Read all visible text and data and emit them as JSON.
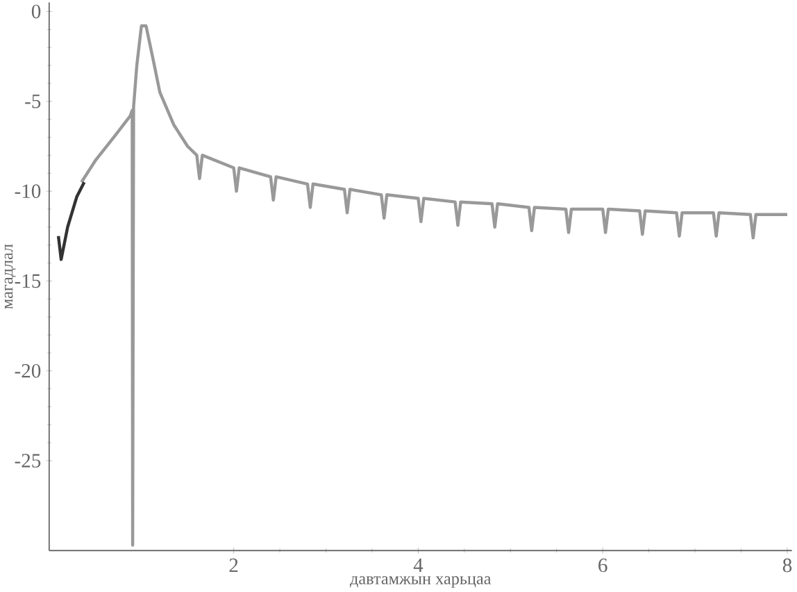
{
  "chart_data": {
    "type": "line",
    "xlabel": "давтамжын харьцаа",
    "ylabel": "магадлал",
    "xlim": [
      0,
      8.05
    ],
    "ylim": [
      -30,
      0.5
    ],
    "xticks": [
      2,
      4,
      6,
      8
    ],
    "yticks": [
      0,
      -5,
      -10,
      -15,
      -20,
      -25
    ],
    "grid": false,
    "marker": "none",
    "line_style": "solid",
    "series": [
      {
        "color": "#999999",
        "x": [
          0.35,
          0.5,
          0.7,
          0.88,
          0.9,
          0.905,
          0.915,
          0.95,
          1.0,
          1.05,
          1.12,
          1.2,
          1.35,
          1.5,
          1.6,
          1.63,
          1.66,
          2.0,
          2.03,
          2.06,
          2.4,
          2.43,
          2.46,
          2.8,
          2.83,
          2.86,
          3.2,
          3.23,
          3.26,
          3.6,
          3.63,
          3.66,
          4.0,
          4.03,
          4.06,
          4.4,
          4.43,
          4.46,
          4.8,
          4.83,
          4.86,
          5.2,
          5.23,
          5.26,
          5.6,
          5.63,
          5.66,
          6.0,
          6.03,
          6.06,
          6.4,
          6.43,
          6.46,
          6.8,
          6.83,
          6.86,
          7.2,
          7.23,
          7.26,
          7.6,
          7.63,
          7.66,
          8.0
        ],
        "values": [
          -9.5,
          -8.3,
          -7.0,
          -5.8,
          -5.5,
          -29.7,
          -5.3,
          -3.0,
          -0.8,
          -0.8,
          -2.5,
          -4.5,
          -6.3,
          -7.5,
          -8.0,
          -9.3,
          -8.0,
          -8.7,
          -10.0,
          -8.7,
          -9.2,
          -10.5,
          -9.2,
          -9.6,
          -10.9,
          -9.6,
          -9.9,
          -11.2,
          -9.9,
          -10.2,
          -11.5,
          -10.2,
          -10.4,
          -11.7,
          -10.4,
          -10.6,
          -11.9,
          -10.6,
          -10.7,
          -12.0,
          -10.7,
          -10.9,
          -12.2,
          -10.9,
          -11.0,
          -12.3,
          -11.0,
          -11.0,
          -12.3,
          -11.0,
          -11.1,
          -12.4,
          -11.1,
          -11.2,
          -12.5,
          -11.2,
          -11.2,
          -12.5,
          -11.2,
          -11.3,
          -12.6,
          -11.3,
          -11.3
        ]
      },
      {
        "color": "#333333",
        "x": [
          0.1,
          0.13,
          0.2,
          0.3,
          0.38
        ],
        "values": [
          -12.5,
          -13.8,
          -12.0,
          -10.3,
          -9.5
        ]
      }
    ]
  }
}
